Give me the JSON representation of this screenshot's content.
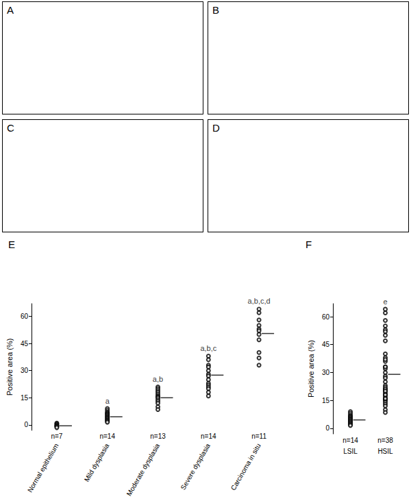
{
  "image_panels": [
    {
      "label": "A"
    },
    {
      "label": "B"
    },
    {
      "label": "C"
    },
    {
      "label": "D"
    }
  ],
  "chart_data": [
    {
      "type": "scatter",
      "panel_label": "E",
      "marker": "open_circle",
      "categories": [
        "Normal epithelium",
        "Mild dysplasia",
        "Moderate dysplasia",
        "Severe dysplasia",
        "Carcinoma in situ"
      ],
      "values": [
        [
          1,
          0.5,
          0,
          -0.5,
          -0.5,
          -1,
          -1.5
        ],
        [
          9,
          8,
          7,
          6.5,
          6,
          5.5,
          5,
          4.5,
          4,
          3.5,
          3,
          2.5,
          2,
          1.5
        ],
        [
          21,
          20,
          19,
          18,
          17,
          16,
          15.5,
          15,
          14,
          13,
          12,
          10,
          8.5
        ],
        [
          38,
          36,
          33,
          32,
          30,
          28,
          27,
          25,
          23,
          22,
          21,
          20,
          18,
          16
        ],
        [
          64,
          62,
          58,
          55,
          53,
          52,
          50,
          47,
          40,
          37,
          33
        ]
      ],
      "means": [
        -0.5,
        4.5,
        15,
        27.5,
        50.5
      ],
      "annotations": [
        null,
        "a",
        "a,b",
        "a,b,c",
        "a,b,c,d"
      ],
      "n_labels": [
        "n=7",
        "n=14",
        "n=13",
        "n=14",
        "n=11"
      ],
      "y_label": "Positive area (%)",
      "ylim": [
        -3,
        67
      ],
      "yticks": [
        0,
        15,
        30,
        45,
        60
      ]
    },
    {
      "type": "scatter",
      "panel_label": "F",
      "marker": "open_circle",
      "categories": [
        "LSIL",
        "HSIL"
      ],
      "values": [
        [
          9,
          8,
          7,
          6.5,
          6,
          5.5,
          5,
          4.5,
          4,
          3.5,
          3,
          2.5,
          2,
          1.5
        ],
        [
          21,
          20,
          19,
          18,
          17,
          16,
          15.5,
          15,
          14,
          13,
          12,
          10,
          8.5,
          38,
          36,
          33,
          32,
          30,
          28,
          27,
          25,
          23,
          22,
          21,
          20,
          18,
          16,
          64,
          62,
          58,
          55,
          53,
          52,
          50,
          47,
          40,
          37,
          33
        ]
      ],
      "means": [
        4.5,
        29
      ],
      "annotations": [
        null,
        "e"
      ],
      "n_labels": [
        "n=14",
        "n=38"
      ],
      "y_label": "Positive area (%)",
      "ylim": [
        -3,
        67
      ],
      "yticks": [
        0,
        15,
        30,
        45,
        60
      ]
    }
  ]
}
